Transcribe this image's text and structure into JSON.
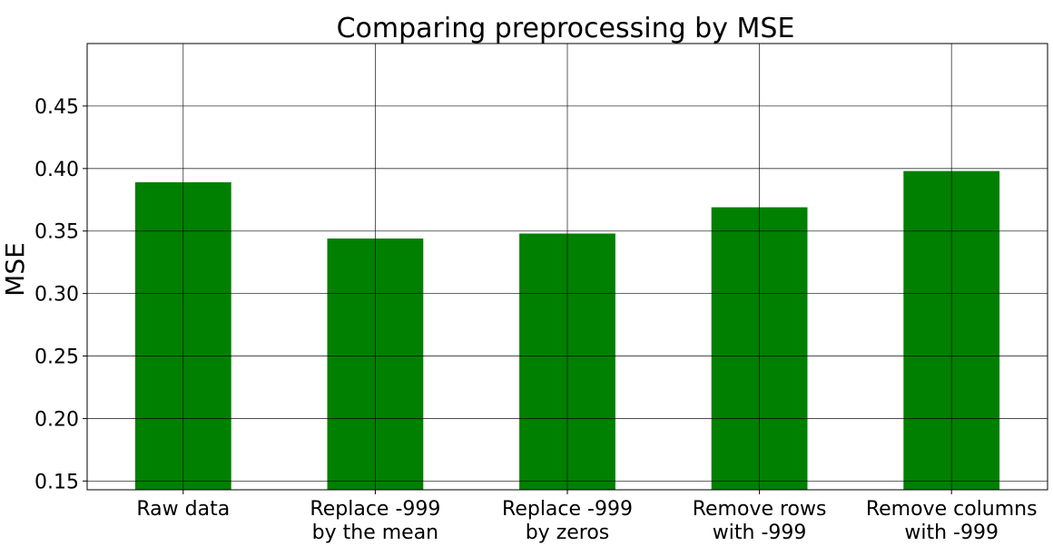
{
  "chart_data": {
    "type": "bar",
    "title": "Comparing preprocessing by MSE",
    "xlabel": "",
    "ylabel": "MSE",
    "categories": [
      [
        "Raw data"
      ],
      [
        "Replace -999",
        "by the mean"
      ],
      [
        "Replace -999",
        "by zeros"
      ],
      [
        "Remove rows",
        "with -999"
      ],
      [
        "Remove columns",
        "with -999"
      ]
    ],
    "values": [
      0.389,
      0.344,
      0.348,
      0.369,
      0.398
    ],
    "ylim": [
      0.143,
      0.5
    ],
    "yticks": [
      "0.15",
      "0.20",
      "0.25",
      "0.30",
      "0.35",
      "0.40",
      "0.45"
    ],
    "grid": true,
    "bar_color": "#008000"
  }
}
